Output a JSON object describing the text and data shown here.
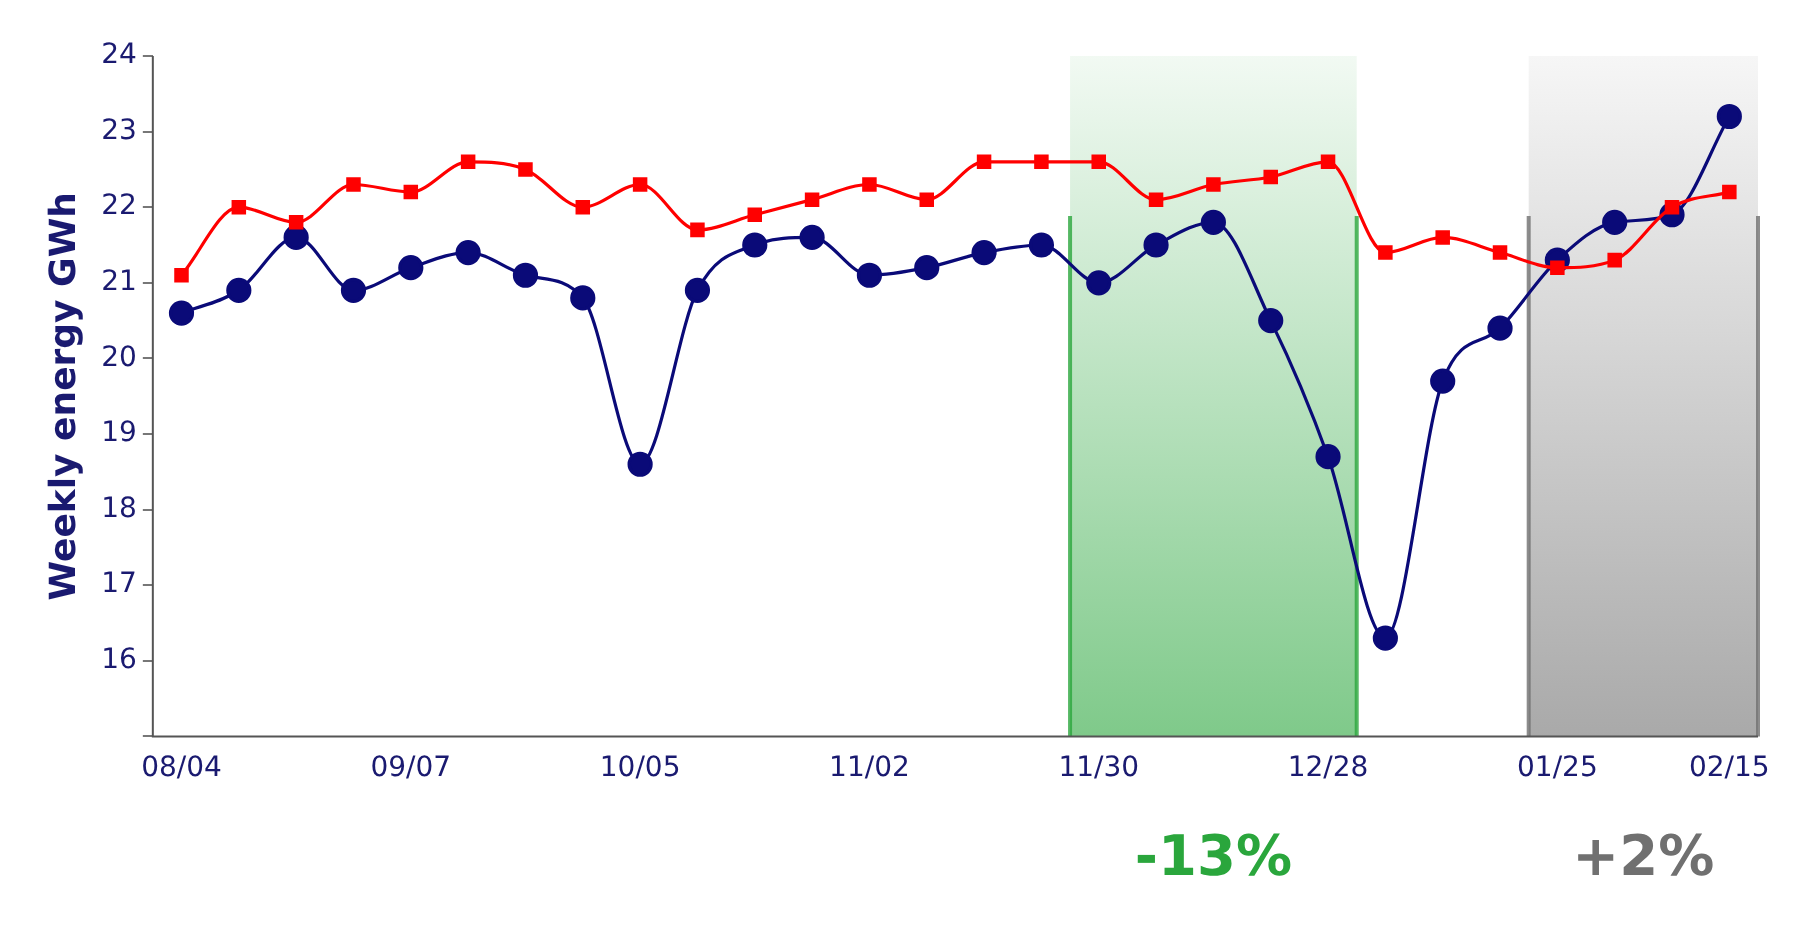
{
  "chart_data": {
    "type": "line",
    "ylabel": "Weekly energy GWh",
    "categories": [
      "08/04",
      null,
      null,
      null,
      "09/07",
      null,
      null,
      null,
      "10/05",
      null,
      null,
      null,
      "11/02",
      null,
      null,
      null,
      "11/30",
      null,
      null,
      null,
      "12/28",
      null,
      null,
      null,
      "01/25",
      null,
      null,
      "02/15"
    ],
    "series": [
      {
        "color": "#0a0a78",
        "marker": "circle",
        "values": [
          20.6,
          20.9,
          21.6,
          20.9,
          21.2,
          21.4,
          21.1,
          20.8,
          18.6,
          20.9,
          21.5,
          21.6,
          21.1,
          21.2,
          21.4,
          21.5,
          21.0,
          21.5,
          21.8,
          20.5,
          18.7,
          16.3,
          19.7,
          20.4,
          21.3,
          21.8,
          21.9,
          23.2
        ]
      },
      {
        "color": "#ff0000",
        "marker": "square",
        "values": [
          21.1,
          22.0,
          21.8,
          22.3,
          22.2,
          22.6,
          22.5,
          22.0,
          22.3,
          21.7,
          21.9,
          22.1,
          22.3,
          22.1,
          22.6,
          22.6,
          22.6,
          22.1,
          22.3,
          22.4,
          22.6,
          21.4,
          21.6,
          21.4,
          21.2,
          21.3,
          22.0,
          22.2
        ]
      }
    ],
    "ylim": [
      15,
      24
    ],
    "yticks": [
      {
        "value": 15,
        "label": null
      },
      16,
      17,
      18,
      19,
      20,
      21,
      22,
      23,
      24
    ],
    "bands": [
      {
        "axis": "x",
        "from": "11/30",
        "to": "12/28",
        "label": "-13%",
        "color": "#2aa63c"
      },
      {
        "axis": "x",
        "from": "01/25",
        "to": "02/15",
        "label": "+2%",
        "color": "#707070"
      }
    ],
    "grid": false,
    "legend": false,
    "line_style": "solid"
  }
}
